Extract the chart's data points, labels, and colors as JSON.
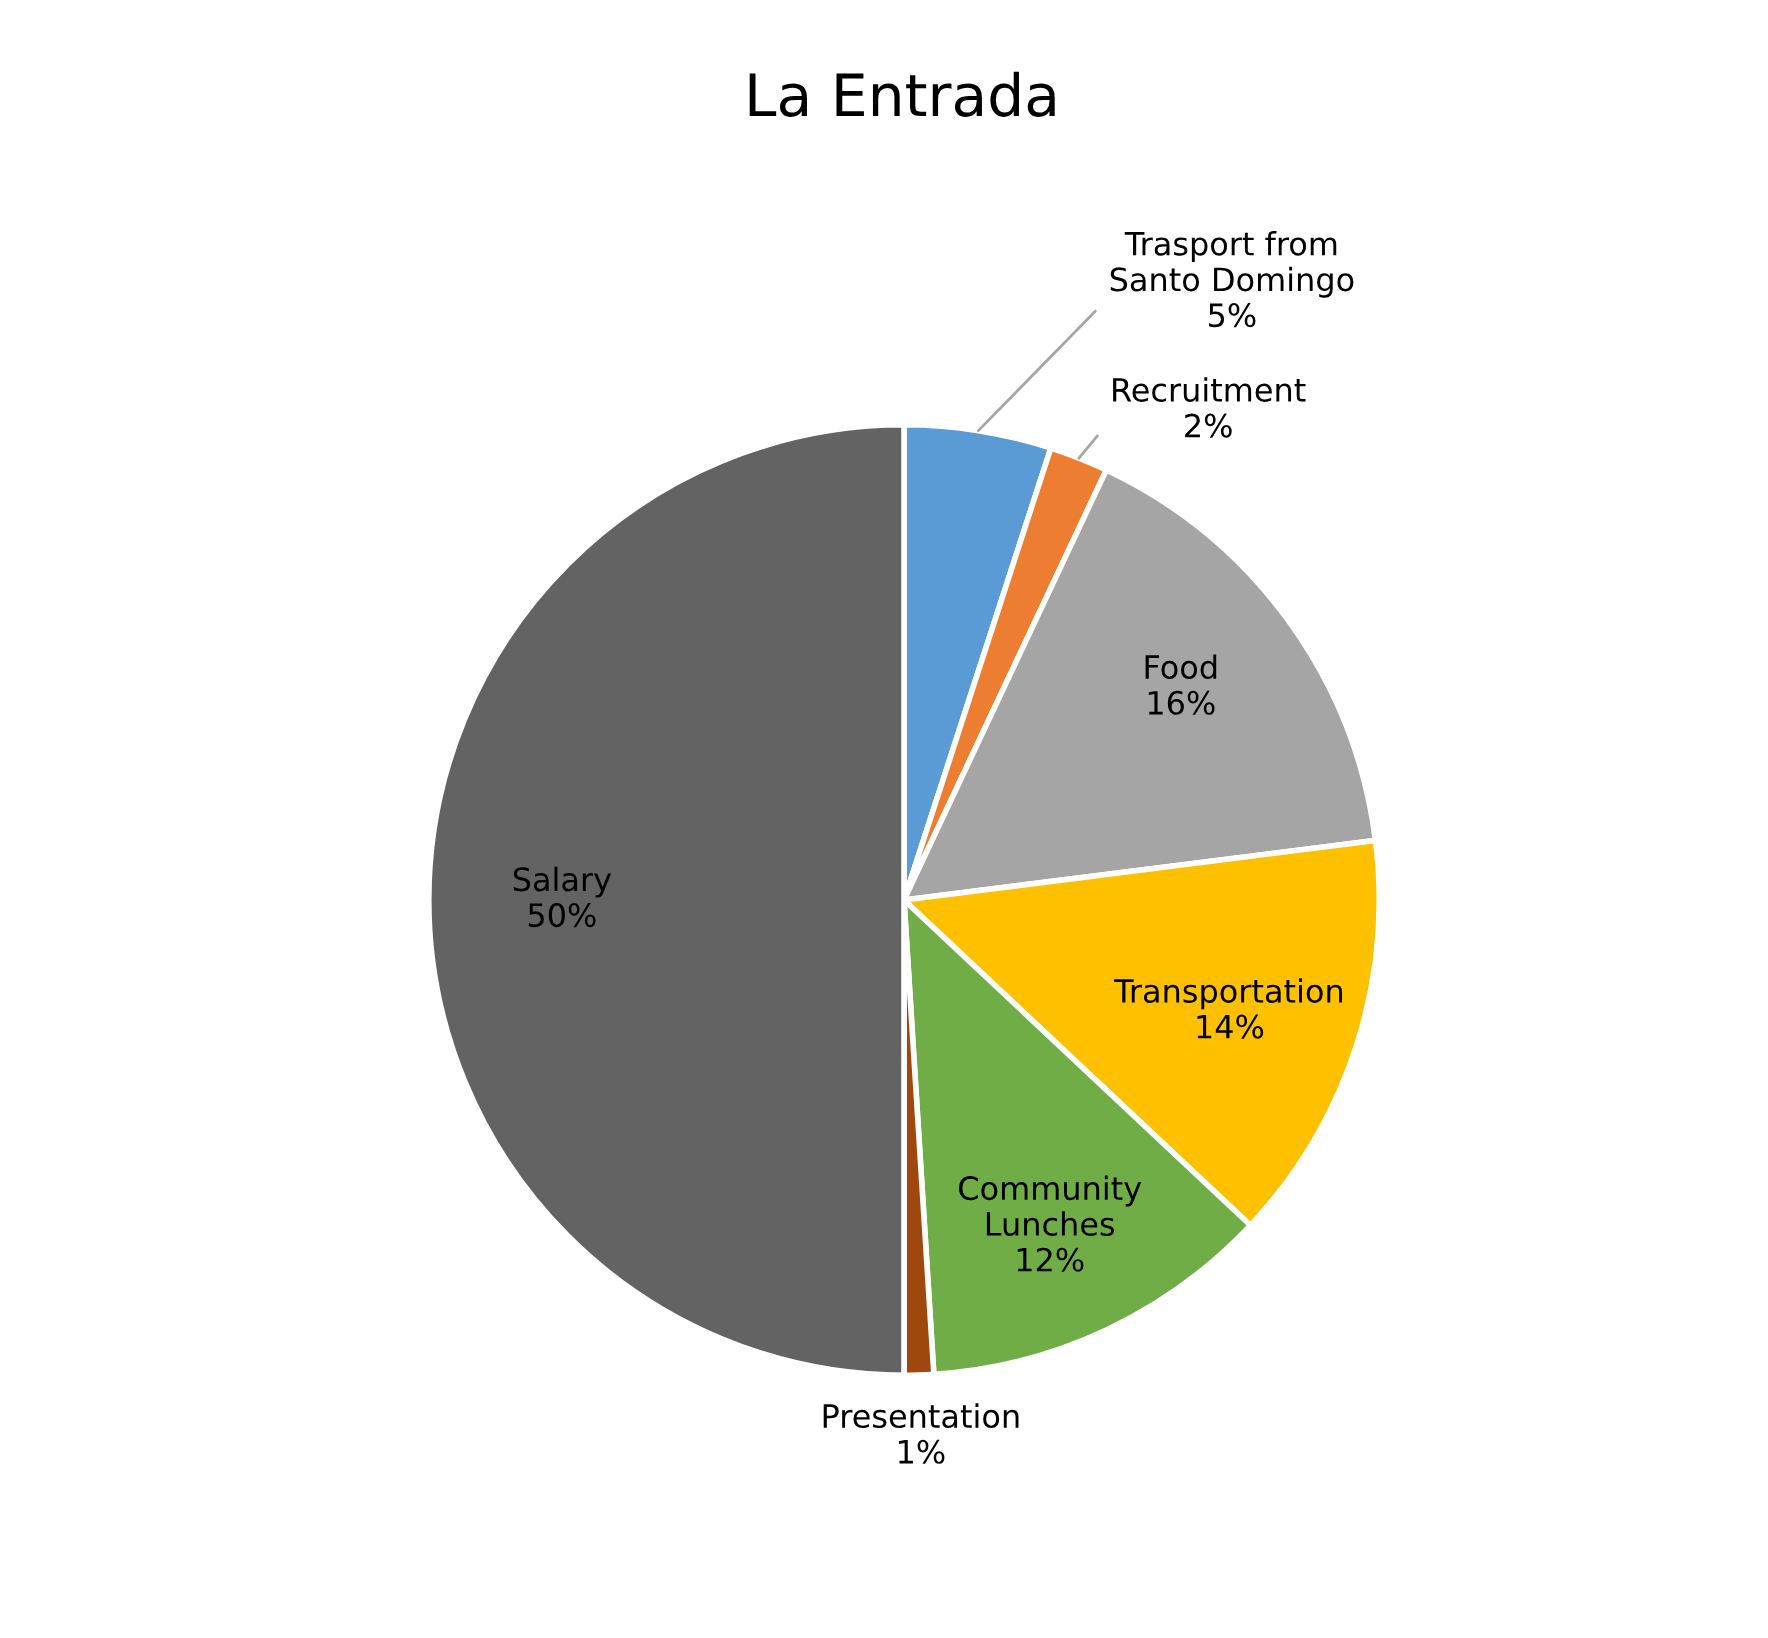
{
  "chart_data": {
    "type": "pie",
    "title": "La Entrada",
    "categories": [
      "Trasport from\nSanto Domingo",
      "Recruitment",
      "Food",
      "Transportation",
      "Community\nLunches",
      "Presentation",
      "Salary"
    ],
    "values": [
      5,
      2,
      16,
      14,
      12,
      1,
      50
    ],
    "colors": [
      "#5b9bd5",
      "#ed7d31",
      "#a5a5a5",
      "#ffc000",
      "#70ad47",
      "#9e480e",
      "#636363"
    ],
    "value_labels": [
      "5%",
      "2%",
      "16%",
      "14%",
      "12%",
      "1%",
      "50%"
    ]
  }
}
